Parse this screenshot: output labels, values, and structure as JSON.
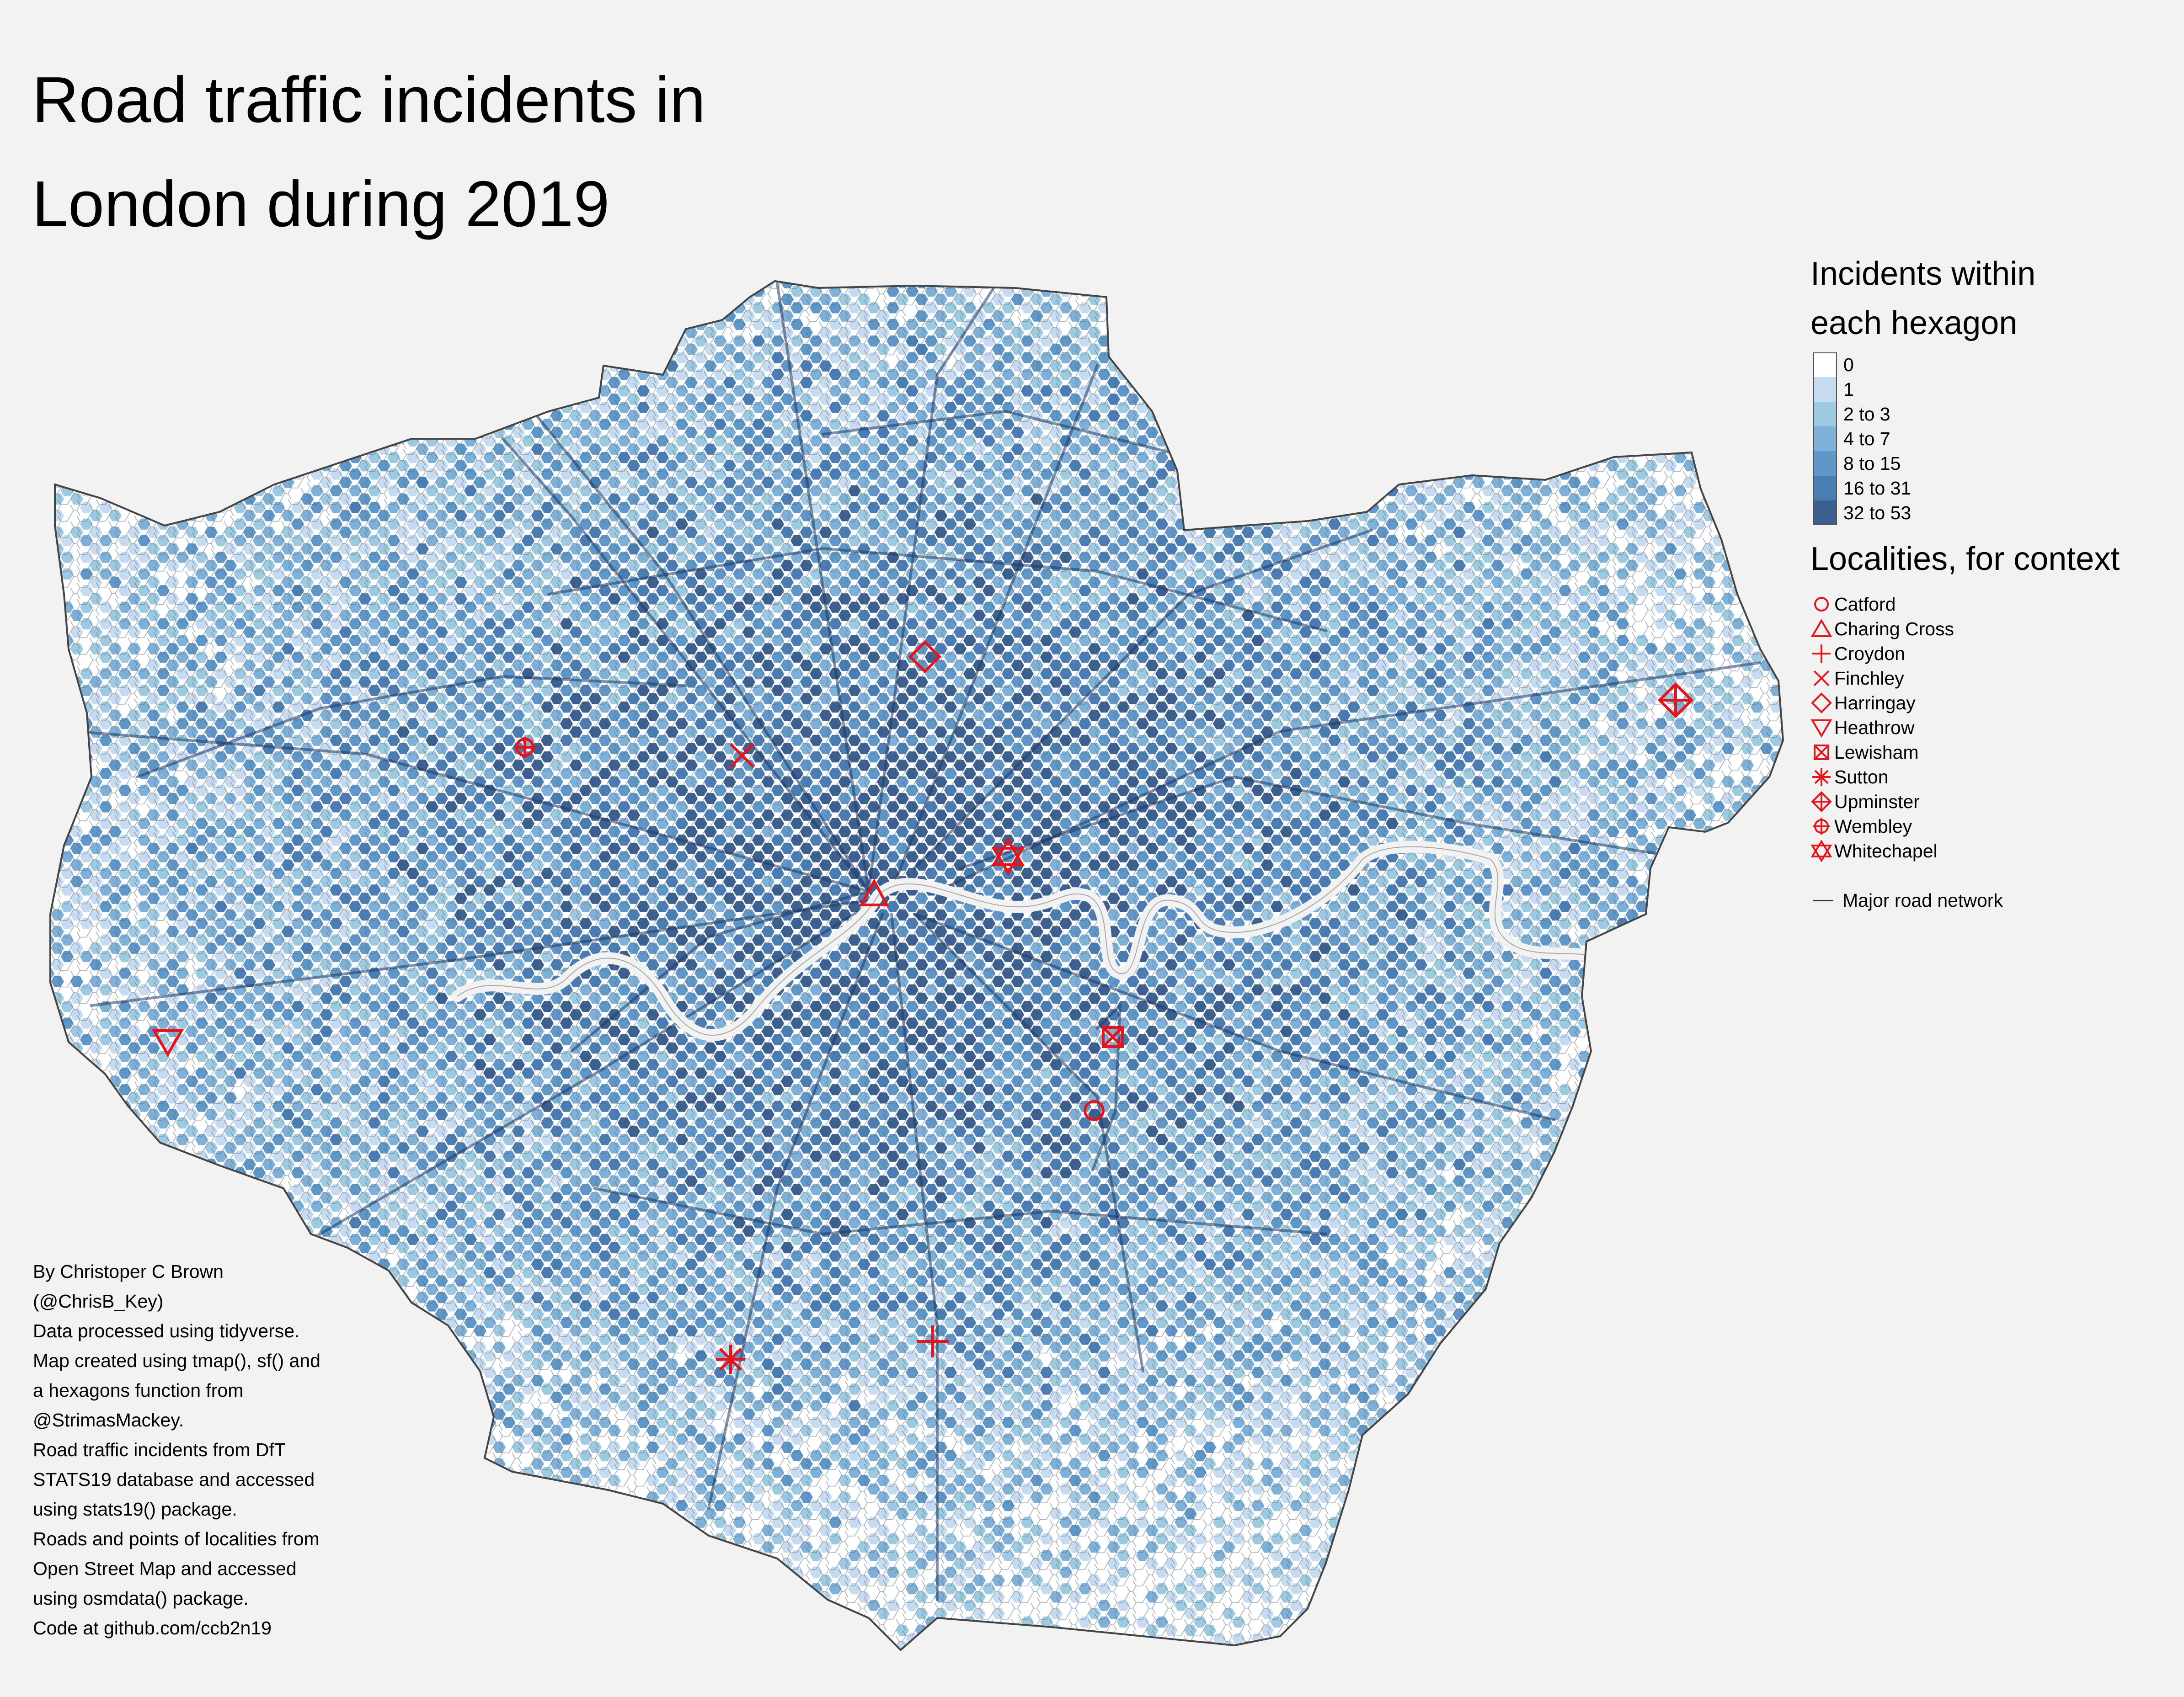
{
  "title": {
    "line1": "Road traffic incidents in",
    "line2": "London during 2019"
  },
  "legend": {
    "scale_title_line1": "Incidents within",
    "scale_title_line2": "each hexagon",
    "classes": [
      {
        "label": "0",
        "color": "#ffffff"
      },
      {
        "label": "1",
        "color": "#c6dbef"
      },
      {
        "label": "2 to 3",
        "color": "#9ecae1"
      },
      {
        "label": "4 to 7",
        "color": "#7fb1d8"
      },
      {
        "label": "8 to 15",
        "color": "#5f97c8"
      },
      {
        "label": "16 to 31",
        "color": "#4a7db4"
      },
      {
        "label": "32 to 53",
        "color": "#3b5f8f"
      }
    ],
    "localities_title": "Localities, for context",
    "localities": [
      {
        "label": "Catford",
        "icon": "circle-icon"
      },
      {
        "label": "Charing Cross",
        "icon": "triangle-up-icon"
      },
      {
        "label": "Croydon",
        "icon": "plus-icon"
      },
      {
        "label": "Finchley",
        "icon": "cross-icon"
      },
      {
        "label": "Harringay",
        "icon": "diamond-icon"
      },
      {
        "label": "Heathrow",
        "icon": "triangle-down-icon"
      },
      {
        "label": "Lewisham",
        "icon": "boxed-x-icon"
      },
      {
        "label": "Sutton",
        "icon": "asterisk-icon"
      },
      {
        "label": "Upminster",
        "icon": "diamond-plus-icon"
      },
      {
        "label": "Wembley",
        "icon": "circle-plus-icon"
      },
      {
        "label": "Whitechapel",
        "icon": "star-of-david-icon"
      }
    ],
    "road_label": "Major road network"
  },
  "credits": [
    "By Christoper C Brown",
    "(@ChrisB_Key)",
    "Data processed using tidyverse.",
    "Map created using tmap(), sf() and",
    "a hexagons function from",
    "@StrimasMackey.",
    "Road traffic incidents from DfT",
    "STATS19 database and accessed",
    "using stats19() package.",
    "Roads and points of localities from",
    "Open Street Map and accessed",
    "using osmdata() package.",
    "Code at github.com/ccb2n19"
  ],
  "colors": {
    "marker": "#e8141c",
    "river": "#f2f2f2",
    "road": "#1f3b66"
  }
}
